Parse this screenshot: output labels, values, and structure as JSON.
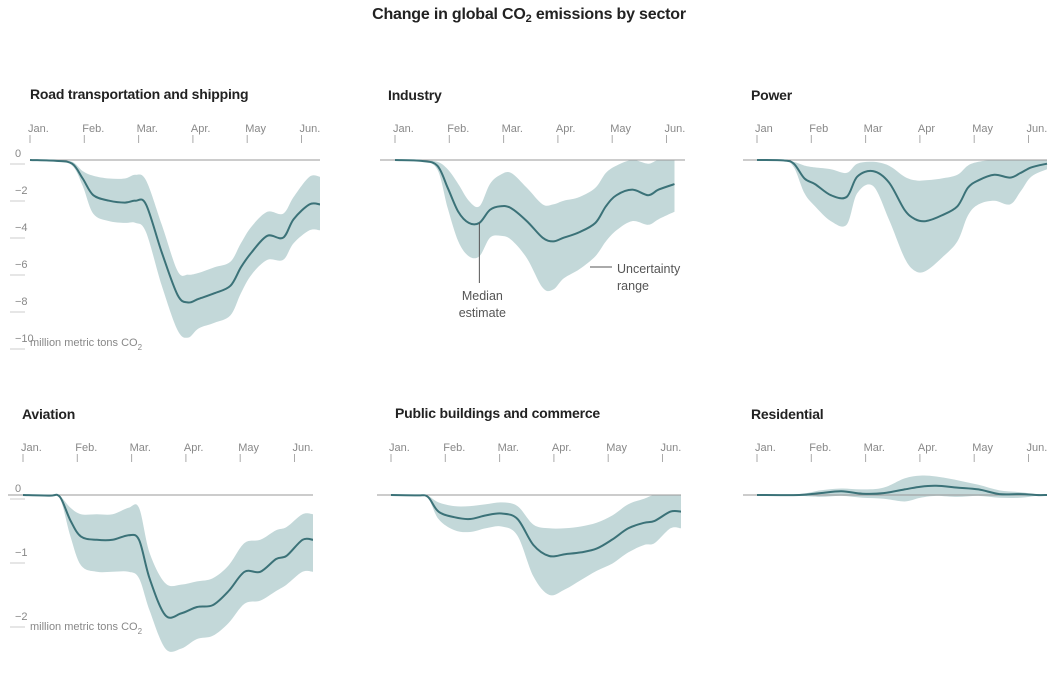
{
  "title_main": "Change in global CO",
  "title_sub": "2",
  "title_tail": " emissions by sector",
  "colors": {
    "band": "#c3d8d9",
    "line": "#3b7278",
    "zero": "#999999",
    "text": "#222222",
    "muted": "#888888"
  },
  "chart_data": [
    {
      "type": "area",
      "title": "Road transportation and shipping",
      "x_tick_labels": [
        "Jan.",
        "Feb.",
        "Mar.",
        "Apr.",
        "May",
        "Jun."
      ],
      "y_tick_labels": [
        "0",
        "−2",
        "−4",
        "−6",
        "−8",
        "−10"
      ],
      "y_ticks": [
        0,
        -2,
        -4,
        -6,
        -8,
        -10
      ],
      "unit_label": " million metric tons CO",
      "unit_sub": "2",
      "ylim": [
        -10,
        0
      ],
      "x": [
        0,
        0.5,
        0.8,
        1.0,
        1.2,
        1.5,
        1.8,
        2.0,
        2.2,
        2.5,
        2.8,
        3.0,
        3.2,
        3.5,
        3.8,
        4.0,
        4.2,
        4.5,
        4.8,
        5.0,
        5.3,
        5.5
      ],
      "median": [
        0,
        -0.05,
        -0.2,
        -1.0,
        -1.9,
        -2.2,
        -2.3,
        -2.2,
        -2.4,
        -5.0,
        -7.3,
        -7.7,
        -7.5,
        -7.2,
        -6.8,
        -5.8,
        -5.0,
        -4.1,
        -4.2,
        -3.2,
        -2.4,
        -2.4
      ],
      "upper": [
        0,
        -0.02,
        -0.1,
        -0.6,
        -0.85,
        -1.0,
        -1.0,
        -0.8,
        -1.1,
        -3.5,
        -6.0,
        -6.2,
        -6.1,
        -5.8,
        -5.5,
        -4.5,
        -3.6,
        -2.8,
        -2.9,
        -2.0,
        -0.9,
        -0.9
      ],
      "lower": [
        0,
        -0.08,
        -0.3,
        -1.4,
        -2.9,
        -3.3,
        -3.4,
        -3.4,
        -3.9,
        -6.8,
        -9.2,
        -9.6,
        -9.1,
        -8.8,
        -8.4,
        -7.2,
        -6.2,
        -5.4,
        -5.4,
        -4.5,
        -3.8,
        -3.8
      ]
    },
    {
      "type": "area",
      "title": "Industry",
      "x_tick_labels": [
        "Jan.",
        "Feb.",
        "Mar.",
        "Apr.",
        "May",
        "Jun."
      ],
      "ylim": [
        -10,
        0
      ],
      "x": [
        0,
        0.5,
        0.8,
        1.0,
        1.2,
        1.4,
        1.6,
        1.8,
        2.0,
        2.2,
        2.5,
        2.8,
        3.0,
        3.2,
        3.5,
        3.8,
        4.0,
        4.2,
        4.5,
        4.8,
        5.0,
        5.3
      ],
      "median": [
        0,
        -0.05,
        -0.3,
        -1.5,
        -2.8,
        -3.4,
        -3.4,
        -2.7,
        -2.5,
        -2.6,
        -3.3,
        -4.2,
        -4.4,
        -4.2,
        -3.9,
        -3.4,
        -2.5,
        -1.9,
        -1.6,
        -1.9,
        -1.6,
        -1.3
      ],
      "upper": [
        0,
        -0.02,
        -0.1,
        -0.5,
        -1.3,
        -2.2,
        -2.5,
        -1.3,
        -0.8,
        -0.7,
        -1.5,
        -2.4,
        -2.4,
        -2.2,
        -2.0,
        -1.5,
        -0.7,
        -0.3,
        0,
        -0.2,
        0,
        0
      ],
      "lower": [
        0,
        -0.08,
        -0.5,
        -2.6,
        -4.4,
        -5.2,
        -5.2,
        -4.2,
        -4.1,
        -4.3,
        -5.3,
        -6.9,
        -7.0,
        -6.4,
        -5.9,
        -5.2,
        -4.4,
        -3.8,
        -3.3,
        -3.5,
        -3.2,
        -2.8
      ],
      "annotation_median_1": "Median",
      "annotation_median_2": "estimate",
      "annotation_range_1": "Uncertainty",
      "annotation_range_2": "range"
    },
    {
      "type": "area",
      "title": "Power",
      "x_tick_labels": [
        "Jan",
        "Feb",
        "Mar",
        "Apr",
        "May",
        "Jun."
      ],
      "ylim": [
        -10,
        0
      ],
      "x": [
        0,
        0.5,
        0.7,
        0.9,
        1.1,
        1.4,
        1.7,
        1.9,
        2.2,
        2.5,
        2.8,
        3.0,
        3.2,
        3.5,
        3.8,
        4.0,
        4.2,
        4.5,
        4.8,
        5.0,
        5.2,
        5.5
      ],
      "median": [
        0,
        -0.02,
        -0.2,
        -1.0,
        -1.3,
        -1.9,
        -2.0,
        -0.9,
        -0.6,
        -1.2,
        -2.7,
        -3.2,
        -3.3,
        -3.0,
        -2.5,
        -1.5,
        -1.1,
        -0.8,
        -0.95,
        -0.7,
        -0.4,
        -0.2
      ],
      "upper": [
        0,
        -0.01,
        -0.1,
        -0.3,
        -0.4,
        -0.5,
        -0.7,
        -0.2,
        -0.1,
        -0.3,
        -0.9,
        -1.1,
        -1.1,
        -1.0,
        -0.8,
        -0.3,
        -0.1,
        0,
        0,
        0,
        0,
        0
      ],
      "lower": [
        0,
        -0.03,
        -0.4,
        -1.8,
        -2.5,
        -3.3,
        -3.5,
        -1.8,
        -1.4,
        -3.2,
        -5.3,
        -6.0,
        -6.0,
        -5.3,
        -4.4,
        -3.0,
        -2.4,
        -2.2,
        -2.4,
        -1.7,
        -0.9,
        -0.5
      ]
    },
    {
      "type": "area",
      "title": "Aviation",
      "x_tick_labels": [
        "Jan.",
        "Feb.",
        "Mar.",
        "Apr.",
        "May",
        "Jun."
      ],
      "y_tick_labels": [
        "0",
        "−1",
        "−2"
      ],
      "y_ticks": [
        0,
        -1,
        -2
      ],
      "unit_label": " million metric tons CO",
      "unit_sub": "2",
      "ylim": [
        -2,
        0
      ],
      "x": [
        0,
        0.5,
        0.7,
        0.9,
        1.1,
        1.4,
        1.7,
        2.0,
        2.2,
        2.4,
        2.7,
        3.0,
        3.3,
        3.6,
        3.9,
        4.2,
        4.5,
        4.8,
        5.0,
        5.3,
        5.5
      ],
      "median": [
        0,
        -0.01,
        -0.03,
        -0.4,
        -0.65,
        -0.7,
        -0.7,
        -0.63,
        -0.7,
        -1.3,
        -1.88,
        -1.85,
        -1.75,
        -1.72,
        -1.5,
        -1.2,
        -1.2,
        -1.0,
        -0.95,
        -0.7,
        -0.7
      ],
      "upper": [
        0,
        -0.01,
        -0.02,
        -0.2,
        -0.3,
        -0.3,
        -0.3,
        -0.2,
        -0.2,
        -0.9,
        -1.38,
        -1.4,
        -1.35,
        -1.3,
        -1.1,
        -0.75,
        -0.7,
        -0.55,
        -0.5,
        -0.3,
        -0.3
      ],
      "lower": [
        0,
        -0.02,
        -0.05,
        -0.65,
        -1.1,
        -1.2,
        -1.2,
        -1.2,
        -1.3,
        -1.8,
        -2.4,
        -2.4,
        -2.25,
        -2.2,
        -2.0,
        -1.7,
        -1.65,
        -1.5,
        -1.4,
        -1.2,
        -1.2
      ]
    },
    {
      "type": "area",
      "title": "Public buildings and commerce",
      "x_tick_labels": [
        "Jan.",
        "Feb.",
        "Mar.",
        "Apr.",
        "May",
        "Jun."
      ],
      "ylim": [
        -10,
        0
      ],
      "x": [
        0,
        0.5,
        0.7,
        0.9,
        1.2,
        1.5,
        1.8,
        2.1,
        2.4,
        2.7,
        3.0,
        3.3,
        3.6,
        3.9,
        4.2,
        4.5,
        4.8,
        5.0,
        5.3,
        5.5
      ],
      "median": [
        0,
        -0.02,
        -0.1,
        -0.9,
        -1.2,
        -1.3,
        -1.1,
        -1.0,
        -1.3,
        -2.7,
        -3.3,
        -3.2,
        -3.1,
        -2.9,
        -2.4,
        -1.8,
        -1.5,
        -1.4,
        -0.9,
        -0.9
      ],
      "upper": [
        0,
        -0.01,
        -0.05,
        -0.4,
        -0.6,
        -0.6,
        -0.5,
        -0.4,
        -0.6,
        -1.6,
        -1.8,
        -1.8,
        -1.7,
        -1.5,
        -1.1,
        -0.5,
        -0.2,
        0,
        0,
        0
      ],
      "lower": [
        0,
        -0.03,
        -0.15,
        -1.3,
        -1.9,
        -2.0,
        -1.8,
        -1.7,
        -2.2,
        -4.4,
        -5.4,
        -5.1,
        -4.6,
        -4.1,
        -3.7,
        -3.1,
        -2.7,
        -2.6,
        -1.8,
        -1.8
      ]
    },
    {
      "type": "area",
      "title": "Residential",
      "x_tick_labels": [
        "Jan.",
        "Feb.",
        "Mar.",
        "Apr.",
        "May",
        "Jun."
      ],
      "ylim": [
        -10,
        0
      ],
      "x": [
        0,
        0.8,
        1.2,
        1.6,
        2.0,
        2.4,
        2.8,
        3.1,
        3.4,
        3.8,
        4.2,
        4.6,
        5.0,
        5.3,
        5.5
      ],
      "median": [
        0,
        0,
        0.1,
        0.2,
        0.07,
        0.1,
        0.3,
        0.45,
        0.5,
        0.4,
        0.3,
        0.05,
        0.05,
        0.0,
        0.0
      ],
      "upper": [
        0,
        0.05,
        0.25,
        0.35,
        0.3,
        0.4,
        0.9,
        1.05,
        1.0,
        0.8,
        0.55,
        0.25,
        0.15,
        0.05,
        0.05
      ],
      "lower": [
        0,
        -0.05,
        -0.1,
        -0.05,
        -0.15,
        -0.2,
        -0.35,
        -0.15,
        -0.05,
        -0.1,
        -0.05,
        -0.15,
        -0.15,
        -0.05,
        -0.05
      ]
    }
  ]
}
